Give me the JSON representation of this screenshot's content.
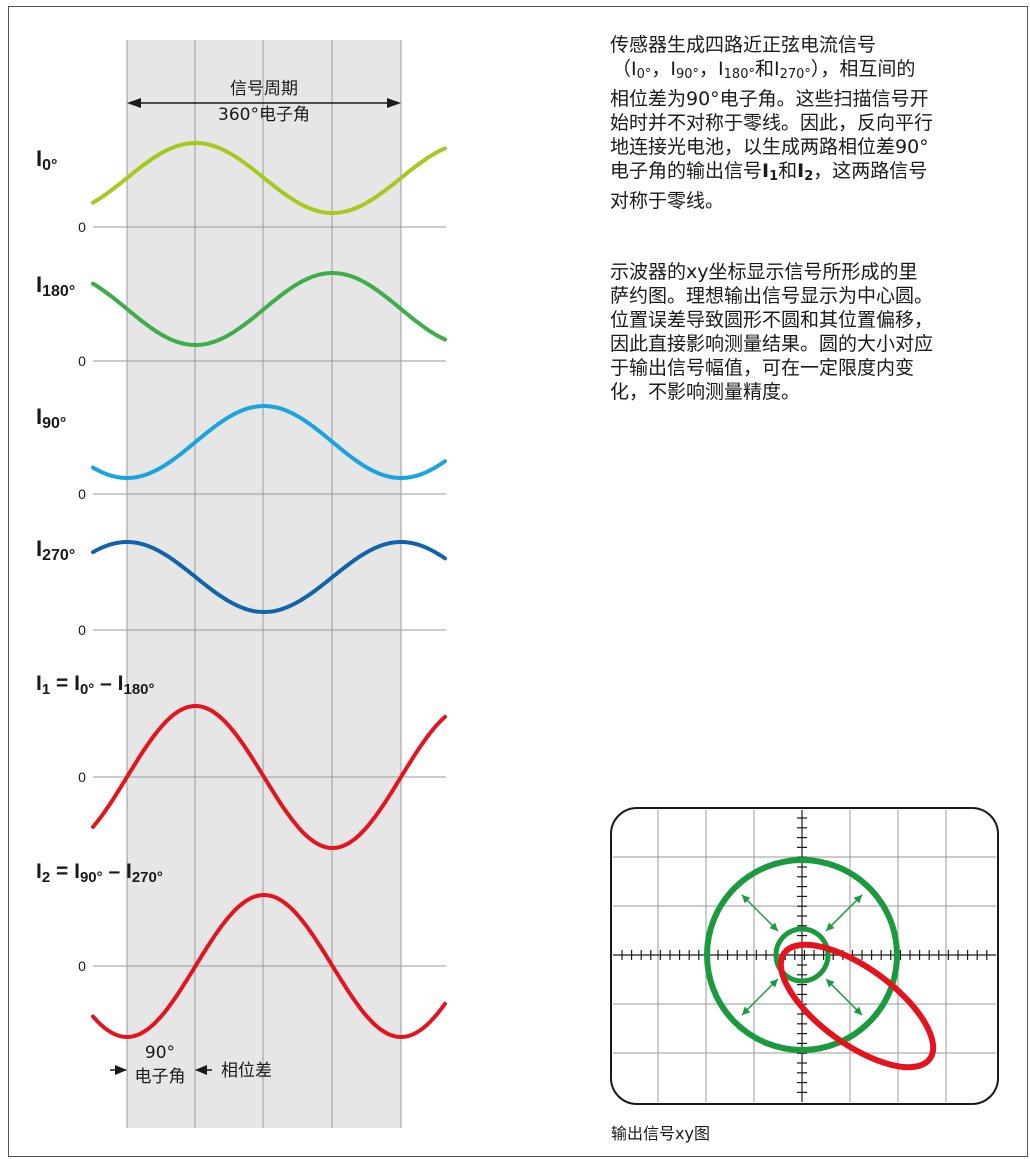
{
  "signal_period": {
    "line1": "信号周期",
    "line2": "360°电子角"
  },
  "signals": [
    {
      "base": "I",
      "sub": "0°",
      "zero_label": "0",
      "color": "#a7c81f"
    },
    {
      "base": "I",
      "sub": "180°",
      "zero_label": "0",
      "color": "#3dae4a"
    },
    {
      "base": "I",
      "sub": "90°",
      "zero_label": "0",
      "color": "#1aa3e3"
    },
    {
      "base": "I",
      "sub": "270°",
      "zero_label": "0",
      "color": "#1064ae"
    }
  ],
  "outputs": [
    {
      "base": "I",
      "sub": "1",
      "eq": " = I",
      "a_sub": "0°",
      "minus": " – I",
      "b_sub": "180°",
      "zero_label": "0",
      "color": "#e3141d"
    },
    {
      "base": "I",
      "sub": "2",
      "eq": " = I",
      "a_sub": "90°",
      "minus": " – I",
      "b_sub": "270°",
      "zero_label": "0",
      "color": "#e3141d"
    }
  ],
  "phase": {
    "angle_line1": "90°",
    "angle_line2": "电子角",
    "label": "相位差"
  },
  "paragraph1": {
    "line1": "传感器生成四路近正弦电流信号",
    "l2_open": "（I",
    "l2_s1": "0°",
    "l2_sep1": "，I",
    "l2_s2": "90°",
    "l2_sep2": "，I",
    "l2_s3": "180°",
    "l2_and": "和I",
    "l2_s4": "270°",
    "l2_close": "），相互间的",
    "line3": "相位差为90°电子角。这些扫描信号开",
    "line4": "始时并不对称于零线。因此，反向平行",
    "line5": "地连接光电池，以生成两路相位差90°",
    "l6_pre": "电子角的输出信号",
    "l6_b1": "I",
    "l6_s1": "1",
    "l6_and": "和",
    "l6_b2": "I",
    "l6_s2": "2",
    "l6_post": "，这两路信号",
    "line7": "对称于零线。"
  },
  "paragraph2": [
    "示波器的xy坐标显示信号所形成的里",
    "萨约图。理想输出信号显示为中心圆。",
    "位置误差导致圆形不圆和其位置偏移，",
    "因此直接影响测量结果。圆的大小对应",
    "于输出信号幅值，可在一定限度内变",
    "化，不影响测量精度。"
  ],
  "xy_caption": "输出信号xy图",
  "colors": {
    "band": "#e6e6e6",
    "grid": "#9a9a9a",
    "xy_green": "#1a9a3c",
    "xy_red": "#e3141d",
    "text": "#1a1a1a"
  }
}
